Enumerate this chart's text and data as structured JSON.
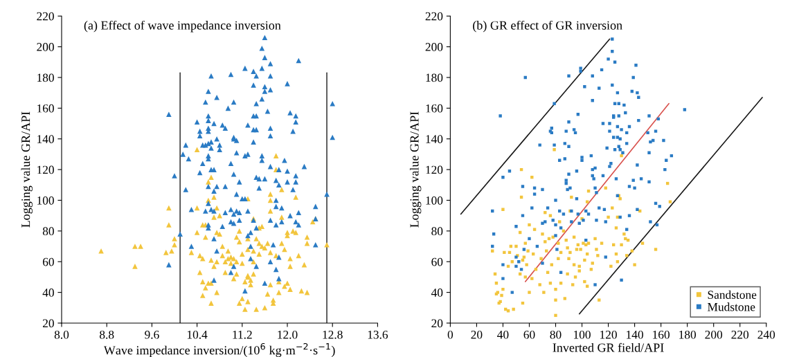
{
  "chart_data": [
    {
      "type": "scatter",
      "title": "(a) Effect of wave impedance inversion",
      "xlabel": "Wave impedance inversion/(10$^{6}$ kg·m$^{−2}$·s$^{−1}$)",
      "ylabel": "Logging value GR/API",
      "xlim": [
        8.0,
        13.6
      ],
      "ylim": [
        20,
        220
      ],
      "xticks": [
        {
          "value": 8.0,
          "label": "8.0"
        },
        {
          "value": 8.8,
          "label": "8.8"
        },
        {
          "value": 9.6,
          "label": "9.6"
        },
        {
          "value": 10.4,
          "label": "10.4"
        },
        {
          "value": 11.2,
          "label": "11.2"
        },
        {
          "value": 12.0,
          "label": "12.0"
        },
        {
          "value": 12.8,
          "label": "12.8"
        },
        {
          "value": 13.6,
          "label": "13.6"
        }
      ],
      "yticks": [
        20,
        40,
        60,
        80,
        100,
        120,
        140,
        160,
        180,
        200,
        220
      ],
      "marker": "triangle",
      "legend": false,
      "grid": false,
      "series": [
        {
          "color": "#f2c53d",
          "x": [
            8.7,
            9.3,
            9.4,
            9.3,
            9.9,
            9.9,
            9.85,
            9.95,
            10.0,
            10.0,
            10.3,
            10.4,
            10.4,
            10.45,
            10.45,
            10.5,
            10.4,
            10.5,
            10.55,
            10.55,
            10.5,
            10.55,
            10.5,
            10.6,
            10.65,
            10.6,
            10.65,
            10.6,
            10.65,
            10.65,
            10.7,
            10.7,
            10.75,
            10.75,
            10.75,
            10.7,
            10.75,
            10.8,
            10.8,
            10.85,
            10.85,
            10.9,
            10.9,
            10.95,
            10.95,
            11.0,
            11.0,
            11.05,
            11.1,
            11.05,
            11.1,
            11.1,
            11.15,
            11.15,
            11.15,
            11.2,
            11.2,
            11.2,
            11.25,
            11.25,
            11.3,
            11.3,
            11.3,
            11.3,
            11.3,
            11.3,
            11.35,
            11.35,
            11.4,
            11.4,
            11.4,
            11.4,
            11.45,
            11.45,
            11.5,
            11.5,
            11.5,
            11.55,
            11.55,
            11.6,
            11.6,
            11.65,
            11.65,
            11.7,
            11.7,
            11.7,
            11.7,
            11.7,
            11.75,
            11.75,
            11.8,
            11.8,
            11.8,
            11.85,
            11.85,
            11.9,
            11.9,
            11.9,
            11.95,
            11.95,
            12.0,
            12.0,
            12.0,
            12.05,
            12.05,
            12.05,
            12.1,
            12.15,
            12.15,
            12.2,
            12.25,
            12.3,
            12.35,
            12.35,
            12.35,
            12.45,
            12.5,
            12.7
          ],
          "values": [
            67,
            70,
            70,
            57,
            95,
            84,
            66,
            67,
            75,
            71,
            66,
            95,
            79,
            53,
            64,
            62,
            133,
            84,
            84,
            76,
            47,
            43,
            38,
            46,
            46,
            112,
            115,
            100,
            61,
            33,
            89,
            102,
            95,
            79,
            60,
            57,
            40,
            90,
            78,
            70,
            64,
            60,
            53,
            62,
            67,
            59,
            63,
            62,
            60,
            49,
            52,
            76,
            80,
            73,
            33,
            65,
            59,
            36,
            29,
            47,
            51,
            50,
            68,
            75,
            101,
            34,
            48,
            45,
            52,
            60,
            67,
            88,
            75,
            29,
            72,
            65,
            82,
            70,
            83,
            69,
            30,
            39,
            72,
            104,
            100,
            93,
            66,
            45,
            35,
            33,
            129,
            120,
            64,
            47,
            40,
            107,
            89,
            72,
            68,
            44,
            79,
            77,
            46,
            62,
            57,
            42,
            80,
            102,
            79,
            64,
            41,
            58,
            76,
            72,
            40,
            86,
            88,
            71
          ]
        },
        {
          "color": "#2a7bc4",
          "x": [
            9.9,
            9.9,
            10.0,
            10.1,
            10.2,
            10.15,
            10.25,
            10.2,
            10.3,
            10.3,
            10.4,
            10.45,
            10.45,
            10.45,
            10.5,
            10.5,
            10.55,
            10.6,
            10.6,
            10.6,
            10.6,
            10.6,
            10.55,
            10.6,
            10.65,
            10.65,
            10.6,
            10.6,
            10.65,
            10.7,
            10.65,
            10.6,
            10.6,
            10.55,
            10.6,
            10.6,
            10.65,
            10.7,
            10.75,
            10.75,
            10.8,
            10.8,
            10.75,
            10.7,
            10.7,
            10.7,
            10.7,
            10.75,
            10.85,
            10.9,
            10.9,
            10.95,
            10.9,
            10.85,
            11.0,
            11.05,
            11.05,
            11.05,
            11.1,
            11.0,
            11.05,
            11.1,
            11.1,
            11.0,
            11.05,
            11.0,
            11.05,
            11.1,
            11.15,
            11.15,
            11.2,
            11.25,
            11.15,
            11.05,
            11.0,
            11.25,
            11.3,
            11.3,
            11.25,
            11.3,
            11.35,
            11.3,
            11.35,
            11.35,
            11.25,
            11.4,
            11.45,
            11.4,
            11.45,
            11.4,
            11.45,
            11.4,
            11.45,
            11.4,
            11.45,
            11.5,
            11.5,
            11.4,
            11.45,
            11.45,
            11.55,
            11.6,
            11.6,
            11.55,
            11.6,
            11.6,
            11.55,
            11.55,
            11.55,
            11.6,
            11.65,
            11.7,
            11.7,
            11.7,
            11.7,
            11.7,
            11.7,
            11.6,
            11.7,
            11.75,
            11.7,
            11.8,
            11.8,
            11.8,
            11.8,
            11.8,
            11.85,
            11.85,
            11.85,
            11.85,
            11.9,
            11.9,
            11.95,
            12.0,
            12.0,
            12.0,
            12.05,
            12.05,
            12.1,
            12.1,
            12.15,
            12.15,
            12.15,
            12.15,
            12.15,
            12.2,
            12.2,
            12.2,
            12.3,
            12.5,
            12.5,
            12.5,
            12.7,
            12.8,
            12.8
          ],
          "values": [
            156,
            58,
            116,
            78,
            136,
            130,
            127,
            107,
            94,
            70,
            151,
            145,
            142,
            118,
            136,
            124,
            164,
            171,
            155,
            152,
            147,
            145,
            136,
            137,
            138,
            134,
            129,
            127,
            120,
            120,
            181,
            109,
            98,
            93,
            84,
            82,
            94,
            150,
            167,
            140,
            136,
            133,
            109,
            106,
            93,
            75,
            48,
            67,
            149,
            147,
            109,
            160,
            92,
            83,
            182,
            164,
            141,
            140,
            139,
            124,
            117,
            131,
            104,
            94,
            91,
            86,
            85,
            93,
            92,
            112,
            101,
            101,
            87,
            57,
            53,
            186,
            149,
            130,
            129,
            93,
            79,
            77,
            70,
            62,
            41,
            184,
            181,
            175,
            163,
            155,
            155,
            146,
            146,
            138,
            115,
            114,
            108,
            87,
            82,
            57,
            199,
            193,
            206,
            186,
            174,
            171,
            166,
            129,
            126,
            114,
            158,
            189,
            181,
            172,
            147,
            142,
            122,
            46,
            87,
            71,
            60,
            113,
            100,
            96,
            84,
            55,
            120,
            110,
            63,
            49,
            95,
            86,
            126,
            176,
            119,
            112,
            90,
            157,
            145,
            107,
            155,
            151,
            116,
            112,
            86,
            191,
            92,
            84,
            122,
            96,
            88,
            71,
            104,
            163,
            141
          ]
        },
        {
          "type": "line",
          "marker": "none",
          "color": "#404040",
          "x": [
            10.1,
            10.1
          ],
          "values": [
            20,
            183
          ]
        },
        {
          "type": "line",
          "marker": "none",
          "color": "#404040",
          "x": [
            12.7,
            12.7
          ],
          "values": [
            20,
            183
          ]
        }
      ]
    },
    {
      "type": "scatter",
      "title": "(b) GR effect of GR inversion",
      "xlabel": "Inverted GR field/API",
      "ylabel": "Logging value GR/API",
      "xlim": [
        0,
        240
      ],
      "ylim": [
        20,
        220
      ],
      "xticks": [
        0,
        20,
        40,
        60,
        80,
        100,
        120,
        140,
        160,
        180,
        200,
        220,
        240
      ],
      "yticks": [
        20,
        40,
        60,
        80,
        100,
        120,
        140,
        160,
        180,
        200,
        220
      ],
      "marker": "square",
      "legend": "bottom right",
      "grid": false,
      "series": [
        {
          "name": "Sandstone",
          "color": "#f2c53d",
          "x": [
            32,
            34,
            35,
            35,
            36,
            37,
            38,
            39,
            40,
            40,
            41,
            42,
            44,
            44,
            45,
            46,
            47,
            48,
            50,
            51,
            53,
            53,
            54,
            54,
            55,
            55,
            56,
            57,
            57,
            58,
            59,
            60,
            60,
            62,
            62,
            63,
            64,
            65,
            66,
            68,
            69,
            70,
            71,
            72,
            72,
            73,
            74,
            75,
            76,
            76,
            77,
            78,
            79,
            80,
            80,
            80,
            82,
            82,
            83,
            84,
            84,
            86,
            87,
            88,
            89,
            89,
            90,
            91,
            91,
            92,
            93,
            94,
            94,
            95,
            96,
            97,
            98,
            98,
            99,
            100,
            101,
            102,
            102,
            103,
            104,
            104,
            104,
            105,
            105,
            107,
            108,
            110,
            111,
            112,
            113,
            115,
            117,
            118,
            120,
            122,
            123,
            124,
            126,
            126,
            127,
            127,
            128,
            129,
            130,
            130,
            132,
            133,
            134,
            135,
            138,
            140,
            144,
            146,
            156,
            165,
            167
          ],
          "values": [
            67,
            52,
            46,
            39,
            40,
            33,
            34,
            38,
            42,
            94,
            66,
            29,
            28,
            57,
            66,
            70,
            60,
            29,
            70,
            64,
            52,
            79,
            102,
            120,
            61,
            33,
            63,
            72,
            50,
            58,
            67,
            40,
            84,
            115,
            49,
            65,
            81,
            55,
            null,
            45,
            62,
            78,
            40,
            73,
            92,
            67,
            53,
            75,
            90,
            46,
            58,
            76,
            133,
            42,
            35,
            25,
            62,
            72,
            86,
            66,
            46,
            80,
            36,
            74,
            69,
            52,
            62,
            93,
            66,
            102,
            45,
            58,
            76,
            50,
            68,
            71,
            57,
            54,
            68,
            88,
            72,
            61,
            47,
            71,
            99,
            65,
            44,
            106,
            72,
            55,
            59,
            75,
            68,
            64,
            35,
            72,
            null,
            108,
            89,
            57,
            95,
            71,
            82,
            65,
            89,
            60,
            103,
            101,
            129,
            71,
            78,
            75,
            64,
            74,
            67,
            58,
            93,
            72,
            68,
            111,
            99
          ]
        },
        {
          "name": "Mudstone",
          "color": "#2a7bc4",
          "x": [
            32,
            33,
            32,
            38,
            40,
            40,
            40,
            45,
            47,
            50,
            50,
            50,
            52,
            54,
            55,
            55,
            56,
            57,
            62,
            60,
            64,
            64,
            66,
            68,
            70,
            70,
            70,
            72,
            74,
            76,
            77,
            77,
            78,
            79,
            79,
            80,
            80,
            80,
            81,
            83,
            83,
            84,
            84,
            86,
            87,
            88,
            87,
            88,
            88,
            89,
            90,
            90,
            90,
            90,
            91,
            92,
            92,
            94,
            95,
            96,
            96,
            97,
            97,
            98,
            99,
            99,
            100,
            100,
            101,
            102,
            103,
            103,
            105,
            107,
            108,
            108,
            108,
            108,
            109,
            110,
            110,
            111,
            111,
            110,
            113,
            113,
            115,
            116,
            116,
            117,
            118,
            118,
            119,
            120,
            121,
            121,
            121,
            122,
            123,
            123,
            123,
            124,
            124,
            124,
            125,
            125,
            125,
            126,
            127,
            127,
            127,
            127,
            128,
            128,
            128,
            129,
            129,
            129,
            130,
            130,
            131,
            132,
            133,
            134,
            134,
            134,
            136,
            136,
            136,
            138,
            139,
            139,
            140,
            141,
            142,
            142,
            142,
            143,
            143,
            145,
            150,
            151,
            152,
            151,
            151,
            152,
            154,
            156,
            156,
            157,
            158,
            159,
            162,
            163,
            164,
            168,
            178
          ],
          "values": [
            93,
            78,
            70,
            155,
            115,
            58,
            49,
            119,
            40,
            83,
            63,
            57,
            60,
            55,
            109,
            90,
            68,
            180,
            95,
            75,
            108,
            104,
            70,
            136,
            107,
            85,
            59,
            86,
            95,
            145,
            147,
            144,
            87,
            136,
            163,
            100,
            84,
            77,
            68,
            126,
            93,
            82,
            53,
            91,
            137,
            145,
            127,
            113,
            111,
            107,
            181,
            151,
            135,
            117,
            108,
            93,
            86,
            146,
            144,
            119,
            101,
            156,
            91,
            85,
            186,
            184,
            128,
            126,
            87,
            174,
            93,
            74,
            91,
            129,
            181,
            165,
            120,
            116,
            114,
            121,
            108,
            105,
            87,
            45,
            173,
            95,
            185,
            150,
            116,
            94,
            86,
            63,
            134,
            192,
            150,
            145,
            122,
            124,
            205,
            197,
            175,
            155,
            154,
            141,
            133,
            190,
            163,
            114,
            170,
            148,
            141,
            103,
            163,
            155,
            135,
            140,
            133,
            89,
            48,
            146,
            131,
            162,
            157,
            144,
            137,
            81,
            148,
            109,
            90,
            171,
            180,
            113,
            108,
            188,
            170,
            123,
            94,
            152,
            167,
            114,
            144,
            155,
            138,
            131,
            112,
            86,
            139,
            145,
            98,
            84,
            153,
            96,
            139,
            120,
            126,
            129,
            159
          ]
        },
        {
          "type": "line",
          "marker": "none",
          "color": "#1a1a1a",
          "x": [
            8,
            121
          ],
          "values": [
            91,
            205
          ]
        },
        {
          "type": "line",
          "marker": "none",
          "color": "#1a1a1a",
          "x": [
            98,
            237
          ],
          "values": [
            26,
            167
          ]
        },
        {
          "type": "line",
          "marker": "none",
          "color": "#d9534f",
          "x": [
            57,
            166
          ],
          "values": [
            47,
            163
          ]
        }
      ]
    }
  ]
}
